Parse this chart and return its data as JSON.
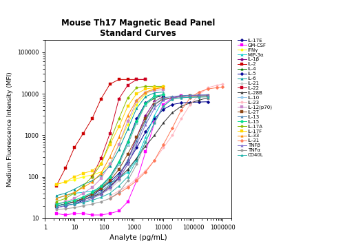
{
  "title": "Mouse Th17 Magnetic Bead Panel\nStandard Curves",
  "xlabel": "Analyte (pg/mL)",
  "ylabel": "Medium Fluorescence Intensity (MFI)",
  "xlim": [
    1,
    2000000
  ],
  "ylim": [
    10,
    200000
  ],
  "bg_color": "#FFFFFF",
  "series": [
    {
      "label": "IL-17E",
      "color": "#00008B",
      "marker": "D",
      "x": [
        2.4,
        4.9,
        9.8,
        19.5,
        39.1,
        78.1,
        156,
        313,
        625,
        1250,
        2500,
        5000,
        10000,
        20000,
        40000,
        80000,
        160000,
        320000
      ],
      "y": [
        18,
        20,
        22,
        27,
        35,
        50,
        75,
        120,
        220,
        500,
        1200,
        2500,
        4200,
        5500,
        6000,
        6200,
        6300,
        6400
      ]
    },
    {
      "label": "GM-CSF",
      "color": "#FF00FF",
      "marker": "s",
      "x": [
        2.4,
        4.9,
        9.8,
        19.5,
        39.1,
        78.1,
        156,
        313,
        625,
        1250,
        2500,
        5000,
        10000,
        20000,
        40000
      ],
      "y": [
        13,
        12,
        13,
        13,
        12,
        12,
        13,
        15,
        25,
        80,
        400,
        2000,
        5500,
        8000,
        9000
      ]
    },
    {
      "label": "IFNγ",
      "color": "#FFFF00",
      "marker": "o",
      "x": [
        2.4,
        4.9,
        9.8,
        19.5,
        39.1,
        78.1,
        156,
        313,
        625,
        1250,
        2500,
        5000,
        10000
      ],
      "y": [
        65,
        75,
        85,
        100,
        110,
        130,
        200,
        600,
        1800,
        5500,
        10000,
        13000,
        15000
      ]
    },
    {
      "label": "MIP-3α",
      "color": "#00CCCC",
      "marker": "^",
      "x": [
        2.4,
        4.9,
        9.8,
        19.5,
        39.1,
        78.1,
        156,
        313,
        625,
        1250,
        2500,
        5000,
        10000
      ],
      "y": [
        30,
        35,
        40,
        42,
        45,
        55,
        70,
        90,
        130,
        270,
        900,
        3000,
        7500
      ]
    },
    {
      "label": "IL-1β",
      "color": "#800080",
      "marker": "D",
      "x": [
        2.4,
        4.9,
        9.8,
        19.5,
        39.1,
        78.1,
        156,
        313,
        625,
        1250,
        2500,
        5000,
        10000
      ],
      "y": [
        20,
        22,
        25,
        28,
        32,
        38,
        55,
        100,
        250,
        900,
        3000,
        6500,
        8500
      ]
    },
    {
      "label": "IL-2",
      "color": "#CC0000",
      "marker": "s",
      "x": [
        2.4,
        4.9,
        9.8,
        19.5,
        39.1,
        78.1,
        156,
        313,
        625,
        1250,
        2500
      ],
      "y": [
        60,
        160,
        500,
        1100,
        2500,
        7500,
        17000,
        22000,
        22000,
        22000,
        22000
      ]
    },
    {
      "label": "IL-4",
      "color": "#007700",
      "marker": "^",
      "x": [
        2.4,
        4.9,
        9.8,
        19.5,
        39.1,
        78.1,
        156,
        313,
        625,
        1250,
        2500,
        5000,
        10000
      ],
      "y": [
        20,
        22,
        25,
        30,
        38,
        55,
        90,
        200,
        600,
        2000,
        5500,
        8000,
        9000
      ]
    },
    {
      "label": "IL-5",
      "color": "#000099",
      "marker": "D",
      "x": [
        2.4,
        4.9,
        9.8,
        19.5,
        39.1,
        78.1,
        156,
        313,
        625,
        1250,
        2500,
        5000,
        10000
      ],
      "y": [
        20,
        22,
        25,
        30,
        40,
        60,
        100,
        220,
        700,
        2500,
        6000,
        8500,
        9000
      ]
    },
    {
      "label": "IL-6",
      "color": "#009999",
      "marker": "^",
      "x": [
        2.4,
        4.9,
        9.8,
        19.5,
        39.1,
        78.1,
        156,
        313,
        625,
        1250,
        2500,
        5000,
        10000
      ],
      "y": [
        35,
        40,
        50,
        65,
        80,
        110,
        180,
        450,
        1400,
        4500,
        8500,
        10500,
        11000
      ]
    },
    {
      "label": "IL-21",
      "color": "#C8C8C8",
      "marker": "o",
      "x": [
        2.4,
        4.9,
        9.8,
        19.5,
        39.1,
        78.1,
        156,
        313,
        625,
        1250,
        2500,
        5000,
        10000
      ],
      "y": [
        20,
        22,
        25,
        28,
        32,
        38,
        50,
        80,
        200,
        700,
        2500,
        6000,
        10000
      ]
    },
    {
      "label": "IL-22",
      "color": "#CC0022",
      "marker": "s",
      "x": [
        39.1,
        78.1,
        156,
        313,
        625,
        1250,
        2500
      ],
      "y": [
        100,
        280,
        1100,
        7500,
        16000,
        22000,
        22000
      ]
    },
    {
      "label": "IL-28B",
      "color": "#333333",
      "marker": "^",
      "x": [
        2.4,
        4.9,
        9.8,
        19.5,
        39.1,
        78.1,
        156,
        313,
        625,
        1250,
        2500,
        5000,
        10000,
        20000,
        40000,
        80000,
        160000,
        320000
      ],
      "y": [
        20,
        22,
        25,
        28,
        33,
        40,
        60,
        90,
        150,
        280,
        550,
        1000,
        2000,
        3500,
        5000,
        6000,
        7000,
        8000
      ]
    },
    {
      "label": "IL-10",
      "color": "#99CCEE",
      "marker": "D",
      "x": [
        2.4,
        4.9,
        9.8,
        19.5,
        39.1,
        78.1,
        156,
        313,
        625,
        1250,
        2500,
        5000,
        10000
      ],
      "y": [
        22,
        24,
        27,
        32,
        40,
        58,
        90,
        200,
        600,
        2000,
        5500,
        8500,
        9500
      ]
    },
    {
      "label": "IL-23",
      "color": "#FFB6C1",
      "marker": "o",
      "x": [
        156,
        313,
        625,
        1250,
        2500,
        5000,
        10000,
        20000,
        40000,
        80000,
        160000,
        320000,
        640000,
        1000000
      ],
      "y": [
        35,
        45,
        60,
        90,
        140,
        250,
        500,
        1000,
        2500,
        5500,
        9500,
        14000,
        16000,
        17000
      ]
    },
    {
      "label": "IL-12(p70)",
      "color": "#CC88CC",
      "marker": "s",
      "x": [
        2.4,
        4.9,
        9.8,
        19.5,
        39.1,
        78.1,
        156,
        313,
        625,
        1250,
        2500,
        5000,
        10000
      ],
      "y": [
        22,
        25,
        30,
        40,
        55,
        90,
        200,
        600,
        2200,
        6500,
        10500,
        12000,
        12500
      ]
    },
    {
      "label": "IL-27",
      "color": "#8B4513",
      "marker": "s",
      "x": [
        2.4,
        4.9,
        9.8,
        19.5,
        39.1,
        78.1,
        156,
        313,
        625,
        1250,
        2500,
        5000,
        10000,
        20000,
        40000,
        80000,
        160000,
        320000
      ],
      "y": [
        20,
        22,
        25,
        30,
        38,
        52,
        80,
        150,
        350,
        900,
        2500,
        5500,
        7500,
        8000,
        8500,
        8800,
        8900,
        9000
      ]
    },
    {
      "label": "IL-13",
      "color": "#4682B4",
      "marker": "^",
      "x": [
        2.4,
        4.9,
        9.8,
        19.5,
        39.1,
        78.1,
        156,
        313,
        625,
        1250,
        2500,
        5000,
        10000,
        20000,
        40000,
        80000,
        160000,
        320000
      ],
      "y": [
        20,
        22,
        24,
        28,
        34,
        44,
        65,
        110,
        250,
        750,
        2200,
        5500,
        8000,
        8500,
        9000,
        9200,
        9300,
        9400
      ]
    },
    {
      "label": "IL-15",
      "color": "#00DD88",
      "marker": "D",
      "x": [
        2.4,
        4.9,
        9.8,
        19.5,
        39.1,
        78.1,
        156,
        313,
        625,
        1250,
        2500,
        5000,
        10000
      ],
      "y": [
        22,
        24,
        27,
        33,
        42,
        60,
        100,
        230,
        700,
        2200,
        5800,
        8800,
        9500
      ]
    },
    {
      "label": "IL-17A",
      "color": "#88BB00",
      "marker": "o",
      "x": [
        2.4,
        4.9,
        9.8,
        19.5,
        39.1,
        78.1,
        156,
        313,
        625,
        1250,
        2500,
        5000,
        10000
      ],
      "y": [
        25,
        30,
        40,
        60,
        100,
        200,
        700,
        2500,
        8000,
        14000,
        15000,
        15000,
        15000
      ]
    },
    {
      "label": "IL-17F",
      "color": "#FFD700",
      "marker": "s",
      "x": [
        2.4,
        4.9,
        9.8,
        19.5,
        39.1,
        78.1,
        156,
        313,
        625,
        1250,
        2500,
        5000,
        10000
      ],
      "y": [
        65,
        75,
        100,
        120,
        140,
        200,
        600,
        1600,
        5000,
        10000,
        13000,
        14000,
        14500
      ]
    },
    {
      "label": "IL-33",
      "color": "#FF8C00",
      "marker": "^",
      "x": [
        2.4,
        4.9,
        9.8,
        19.5,
        39.1,
        78.1,
        156,
        313,
        625,
        1250,
        2500,
        5000,
        10000
      ],
      "y": [
        30,
        35,
        42,
        55,
        75,
        120,
        300,
        900,
        3000,
        7000,
        11000,
        13000,
        14000
      ]
    },
    {
      "label": "IL-31",
      "color": "#FF7755",
      "marker": "D",
      "x": [
        156,
        313,
        625,
        1250,
        2500,
        5000,
        10000,
        20000,
        40000,
        80000,
        160000,
        320000,
        640000,
        1000000
      ],
      "y": [
        30,
        40,
        55,
        80,
        130,
        250,
        600,
        1500,
        4000,
        8000,
        11000,
        13000,
        14000,
        14500
      ]
    },
    {
      "label": "TNFβ",
      "color": "#7766CC",
      "marker": "^",
      "x": [
        2.4,
        4.9,
        9.8,
        19.5,
        39.1,
        78.1,
        156,
        313,
        625,
        1250,
        2500,
        5000,
        10000,
        20000,
        40000,
        80000,
        160000,
        320000
      ],
      "y": [
        18,
        20,
        22,
        25,
        30,
        38,
        55,
        90,
        200,
        600,
        1800,
        4500,
        7000,
        8000,
        8500,
        9000,
        9200,
        9300
      ]
    },
    {
      "label": "TNFα",
      "color": "#999999",
      "marker": "o",
      "x": [
        2.4,
        4.9,
        9.8,
        19.5,
        39.1,
        78.1,
        156,
        313,
        625,
        1250,
        2500,
        5000,
        10000,
        20000,
        40000,
        80000,
        160000,
        320000
      ],
      "y": [
        16,
        17,
        18,
        20,
        22,
        25,
        30,
        42,
        80,
        200,
        700,
        2000,
        5000,
        7500,
        8000,
        8200,
        8300,
        8400
      ]
    },
    {
      "label": "CD40L",
      "color": "#20B2AA",
      "marker": "^",
      "x": [
        2.4,
        4.9,
        9.8,
        19.5,
        39.1,
        78.1,
        156,
        313,
        625,
        1250,
        2500,
        5000,
        10000,
        20000,
        40000,
        80000,
        160000,
        320000
      ],
      "y": [
        20,
        21,
        22,
        24,
        27,
        32,
        40,
        60,
        100,
        250,
        700,
        2000,
        5000,
        7500,
        8000,
        8200,
        8300,
        8400
      ]
    }
  ]
}
